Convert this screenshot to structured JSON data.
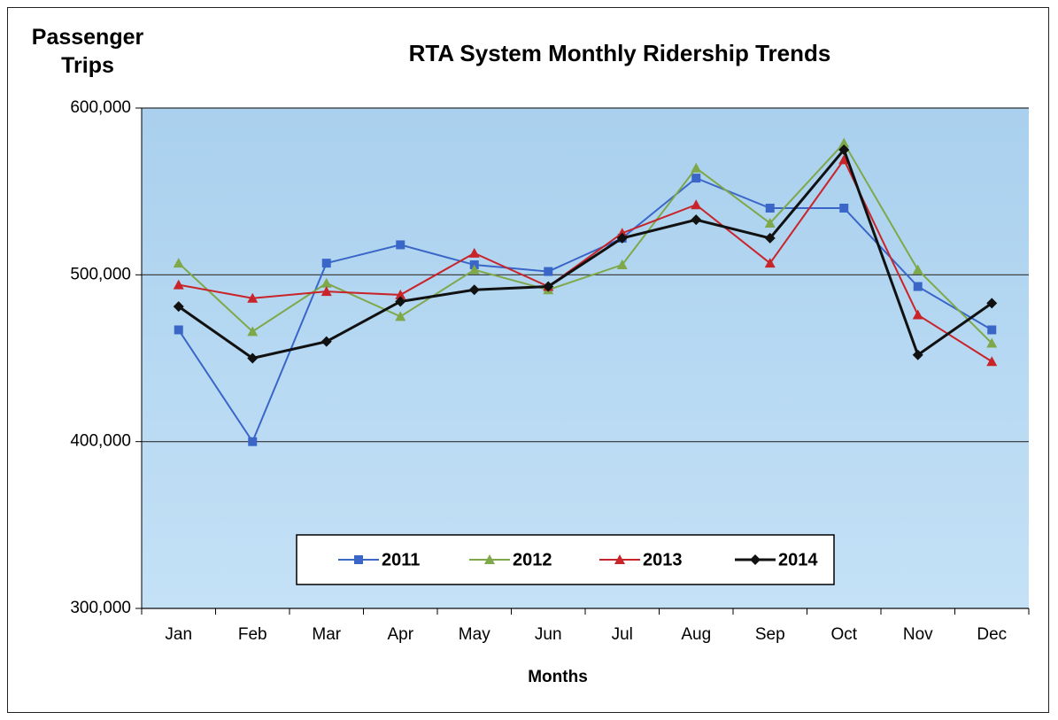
{
  "chart_data": {
    "type": "line",
    "title": "RTA System Monthly Ridership Trends",
    "y_label": "Passenger Trips",
    "x_label": "Months",
    "categories": [
      "Jan",
      "Feb",
      "Mar",
      "Apr",
      "May",
      "Jun",
      "Jul",
      "Aug",
      "Sep",
      "Oct",
      "Nov",
      "Dec"
    ],
    "ylim": [
      300000,
      600000
    ],
    "yticks": [
      {
        "value": 300000,
        "label": "300,000"
      },
      {
        "value": 400000,
        "label": "400,000"
      },
      {
        "value": 500000,
        "label": "500,000"
      },
      {
        "value": 600000,
        "label": "600,000"
      }
    ],
    "grid": true,
    "legend": "bottom",
    "series": [
      {
        "name": "2011",
        "color": "#3a66c8",
        "marker": "square",
        "values": [
          467000,
          400000,
          507000,
          518000,
          506000,
          502000,
          522000,
          558000,
          540000,
          540000,
          493000,
          467000
        ]
      },
      {
        "name": "2012",
        "color": "#7fa84a",
        "marker": "triangle",
        "values": [
          507000,
          466000,
          495000,
          475000,
          503000,
          491000,
          506000,
          564000,
          531000,
          579000,
          503000,
          459000
        ]
      },
      {
        "name": "2013",
        "color": "#c8242a",
        "marker": "triangle",
        "values": [
          494000,
          486000,
          490000,
          488000,
          513000,
          493000,
          525000,
          542000,
          507000,
          569000,
          476000,
          448000
        ]
      },
      {
        "name": "2014",
        "color": "#111111",
        "marker": "diamond",
        "values": [
          481000,
          450000,
          460000,
          484000,
          491000,
          493000,
          522000,
          533000,
          522000,
          575000,
          452000,
          483000
        ]
      }
    ]
  }
}
